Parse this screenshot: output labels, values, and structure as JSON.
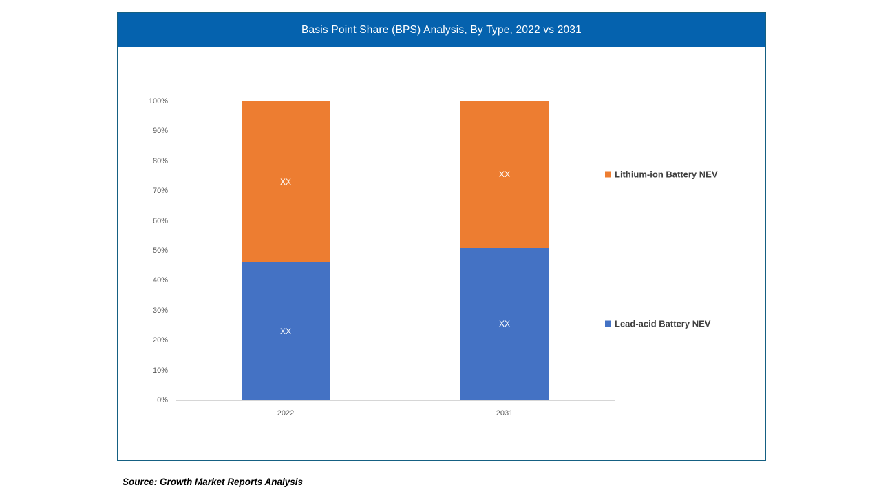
{
  "chart": {
    "title": "Basis Point Share (BPS) Analysis, By Type, 2022 vs 2031",
    "source": "Source: Growth Market Reports Analysis",
    "header_color": "#0562AE",
    "border_color": "#156082"
  },
  "chart_data": {
    "type": "bar",
    "subtype": "stacked-100-percent",
    "title": "Basis Point Share (BPS) Analysis, By Type, 2022 vs 2031",
    "categories": [
      "2022",
      "2031"
    ],
    "series": [
      {
        "name": "Lead-acid Battery NEV",
        "color": "#4472C4",
        "values": [
          46,
          51
        ],
        "data_label": "XX"
      },
      {
        "name": "Lithium-ion Battery NEV",
        "color": "#ED7D31",
        "values": [
          54,
          49
        ],
        "data_label": "XX"
      }
    ],
    "xlabel": "",
    "ylabel": "",
    "ylim": [
      0,
      100
    ],
    "yticks": [
      "0%",
      "10%",
      "20%",
      "30%",
      "40%",
      "50%",
      "60%",
      "70%",
      "80%",
      "90%",
      "100%"
    ],
    "grid": false,
    "legend_position": "right"
  }
}
